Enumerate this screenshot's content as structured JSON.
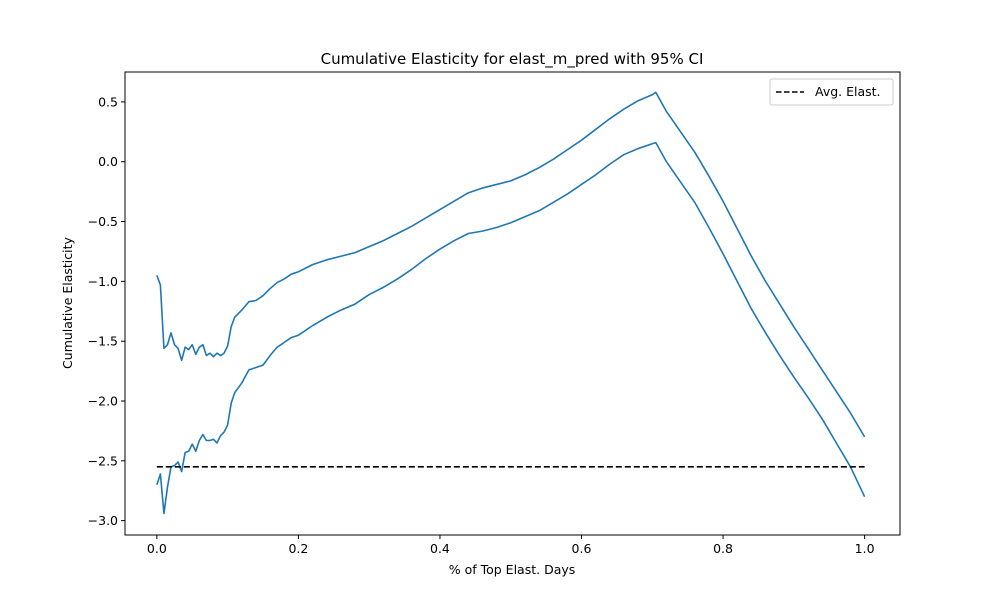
{
  "chart_data": {
    "type": "line",
    "title": "Cumulative Elasticity for elast_m_pred with 95% CI",
    "xlabel": "% of Top Elast. Days",
    "ylabel": "Cumulative Elasticity",
    "xlim": [
      -0.045,
      1.05
    ],
    "ylim": [
      -3.12,
      0.75
    ],
    "xticks": [
      0.0,
      0.2,
      0.4,
      0.6,
      0.8,
      1.0
    ],
    "xtick_labels": [
      "0.0",
      "0.2",
      "0.4",
      "0.6",
      "0.8",
      "1.0"
    ],
    "yticks": [
      -3.0,
      -2.5,
      -2.0,
      -1.5,
      -1.0,
      -0.5,
      0.0,
      0.5
    ],
    "ytick_labels": [
      "−3.0",
      "−2.5",
      "−2.0",
      "−1.5",
      "−1.0",
      "−0.5",
      "0.0",
      "0.5"
    ],
    "legend": {
      "location": "upper right",
      "entries": [
        {
          "label": "Avg. Elast.",
          "style": "dashed",
          "color": "#000000"
        }
      ]
    },
    "series": [
      {
        "name": "Upper 95% CI",
        "color": "#1f77b4",
        "style": "solid",
        "x": [
          0.0,
          0.005,
          0.01,
          0.015,
          0.02,
          0.025,
          0.03,
          0.035,
          0.04,
          0.045,
          0.05,
          0.055,
          0.06,
          0.065,
          0.07,
          0.075,
          0.08,
          0.085,
          0.09,
          0.095,
          0.1,
          0.105,
          0.11,
          0.12,
          0.13,
          0.14,
          0.15,
          0.16,
          0.17,
          0.18,
          0.19,
          0.2,
          0.22,
          0.24,
          0.26,
          0.28,
          0.3,
          0.32,
          0.34,
          0.36,
          0.38,
          0.4,
          0.42,
          0.44,
          0.46,
          0.48,
          0.5,
          0.52,
          0.54,
          0.56,
          0.58,
          0.6,
          0.62,
          0.64,
          0.66,
          0.68,
          0.7,
          0.705,
          0.72,
          0.74,
          0.76,
          0.78,
          0.8,
          0.82,
          0.84,
          0.86,
          0.88,
          0.9,
          0.92,
          0.94,
          0.96,
          0.98,
          1.0
        ],
        "y": [
          -0.95,
          -1.03,
          -1.56,
          -1.53,
          -1.43,
          -1.53,
          -1.56,
          -1.66,
          -1.55,
          -1.57,
          -1.53,
          -1.61,
          -1.55,
          -1.53,
          -1.62,
          -1.6,
          -1.63,
          -1.6,
          -1.62,
          -1.6,
          -1.54,
          -1.38,
          -1.3,
          -1.24,
          -1.17,
          -1.16,
          -1.12,
          -1.06,
          -1.01,
          -0.98,
          -0.94,
          -0.92,
          -0.86,
          -0.82,
          -0.79,
          -0.76,
          -0.71,
          -0.66,
          -0.6,
          -0.54,
          -0.47,
          -0.4,
          -0.33,
          -0.26,
          -0.22,
          -0.19,
          -0.16,
          -0.11,
          -0.05,
          0.02,
          0.1,
          0.18,
          0.27,
          0.36,
          0.44,
          0.51,
          0.56,
          0.58,
          0.42,
          0.25,
          0.08,
          -0.12,
          -0.33,
          -0.56,
          -0.79,
          -1.0,
          -1.19,
          -1.38,
          -1.56,
          -1.74,
          -1.92,
          -2.1,
          -2.3
        ]
      },
      {
        "name": "Lower 95% CI",
        "color": "#1f77b4",
        "style": "solid",
        "x": [
          0.0,
          0.005,
          0.01,
          0.015,
          0.02,
          0.025,
          0.03,
          0.035,
          0.04,
          0.045,
          0.05,
          0.055,
          0.06,
          0.065,
          0.07,
          0.075,
          0.08,
          0.085,
          0.09,
          0.095,
          0.1,
          0.105,
          0.11,
          0.12,
          0.13,
          0.14,
          0.15,
          0.16,
          0.17,
          0.18,
          0.19,
          0.2,
          0.22,
          0.24,
          0.26,
          0.28,
          0.3,
          0.32,
          0.34,
          0.36,
          0.38,
          0.4,
          0.42,
          0.44,
          0.46,
          0.48,
          0.5,
          0.52,
          0.54,
          0.56,
          0.58,
          0.6,
          0.62,
          0.64,
          0.66,
          0.68,
          0.7,
          0.705,
          0.72,
          0.74,
          0.76,
          0.78,
          0.8,
          0.82,
          0.84,
          0.86,
          0.88,
          0.9,
          0.92,
          0.94,
          0.96,
          0.98,
          1.0
        ],
        "y": [
          -2.7,
          -2.61,
          -2.94,
          -2.72,
          -2.55,
          -2.54,
          -2.51,
          -2.59,
          -2.43,
          -2.42,
          -2.36,
          -2.42,
          -2.33,
          -2.28,
          -2.33,
          -2.33,
          -2.32,
          -2.35,
          -2.29,
          -2.26,
          -2.2,
          -2.02,
          -1.93,
          -1.85,
          -1.74,
          -1.72,
          -1.7,
          -1.62,
          -1.55,
          -1.51,
          -1.47,
          -1.45,
          -1.37,
          -1.3,
          -1.24,
          -1.19,
          -1.11,
          -1.05,
          -0.98,
          -0.9,
          -0.81,
          -0.73,
          -0.66,
          -0.6,
          -0.58,
          -0.55,
          -0.51,
          -0.46,
          -0.41,
          -0.34,
          -0.27,
          -0.19,
          -0.11,
          -0.02,
          0.06,
          0.11,
          0.15,
          0.16,
          0.0,
          -0.17,
          -0.34,
          -0.55,
          -0.77,
          -1.0,
          -1.23,
          -1.43,
          -1.62,
          -1.8,
          -1.97,
          -2.15,
          -2.35,
          -2.55,
          -2.8
        ]
      },
      {
        "name": "Avg. Elast.",
        "color": "#000000",
        "style": "dashed",
        "x": [
          0.0,
          1.0
        ],
        "y": [
          -2.55,
          -2.55
        ]
      }
    ]
  }
}
